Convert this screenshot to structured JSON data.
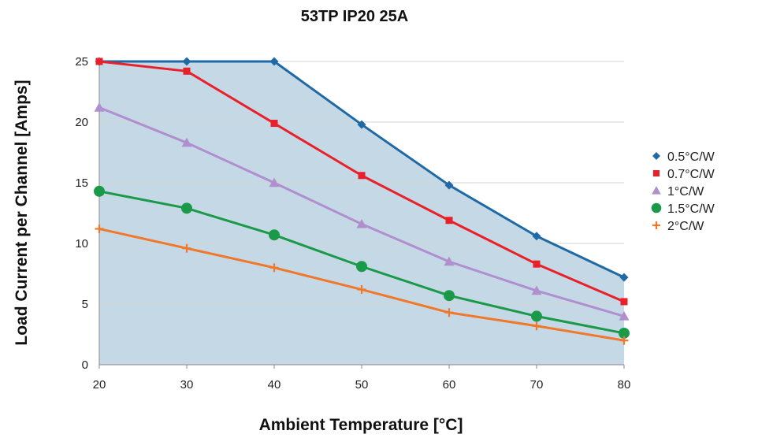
{
  "chart_data": {
    "type": "line",
    "title": "53TP IP20 25A",
    "xlabel": "Ambient Temperature [°C]",
    "ylabel": "Load Current per Channel [Amps]",
    "x": [
      20,
      30,
      40,
      50,
      60,
      70,
      80
    ],
    "xlim": [
      20,
      80
    ],
    "ylim": [
      0,
      25
    ],
    "xticks": [
      "20",
      "30",
      "40",
      "50",
      "60",
      "70",
      "80"
    ],
    "yticks": [
      "0",
      "5",
      "10",
      "15",
      "20",
      "25"
    ],
    "grid": "horizontal",
    "legend": "right",
    "area_fill_color": "#c5d8e6",
    "series": [
      {
        "name": "0.5°C/W",
        "values": [
          25,
          25,
          25,
          19.8,
          14.8,
          10.6,
          7.2
        ],
        "color": "#1f6aa5",
        "marker": "diamond"
      },
      {
        "name": "0.7°C/W",
        "values": [
          25,
          24.2,
          19.9,
          15.6,
          11.9,
          8.3,
          5.2
        ],
        "color": "#e8202a",
        "marker": "square"
      },
      {
        "name": "1°C/W",
        "values": [
          21.2,
          18.3,
          15,
          11.6,
          8.5,
          6.1,
          4
        ],
        "color": "#b08fcf",
        "marker": "triangle"
      },
      {
        "name": "1.5°C/W",
        "values": [
          14.3,
          12.9,
          10.7,
          8.1,
          5.7,
          4,
          2.6
        ],
        "color": "#1a9a48",
        "marker": "circle"
      },
      {
        "name": "2°C/W",
        "values": [
          11.2,
          9.6,
          8,
          6.2,
          4.3,
          3.2,
          2
        ],
        "color": "#f0782a",
        "marker": "plus"
      }
    ]
  }
}
